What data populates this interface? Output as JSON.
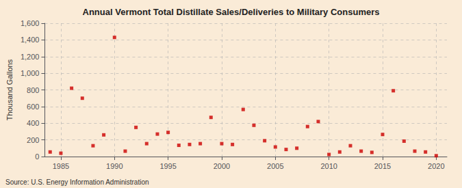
{
  "chart_data": {
    "type": "scatter",
    "title": "Annual Vermont Total Distillate Sales/Deliveries to Military Consumers",
    "ylabel": "Thousand Gallons",
    "annotation": "Source: U.S. Energy Information Administration",
    "x": [
      1984,
      1985,
      1986,
      1987,
      1988,
      1989,
      1990,
      1991,
      1992,
      1993,
      1994,
      1995,
      1996,
      1997,
      1998,
      1999,
      2000,
      2001,
      2002,
      2003,
      2004,
      2005,
      2006,
      2007,
      2008,
      2009,
      2010,
      2011,
      2012,
      2013,
      2014,
      2015,
      2016,
      2017,
      2018,
      2019,
      2020
    ],
    "values": [
      55,
      40,
      820,
      700,
      130,
      260,
      1430,
      65,
      350,
      155,
      270,
      290,
      135,
      145,
      155,
      470,
      155,
      145,
      565,
      375,
      190,
      115,
      85,
      100,
      360,
      420,
      25,
      55,
      130,
      65,
      50,
      265,
      790,
      185,
      65,
      55,
      10
    ],
    "color": "#cc0000",
    "marker": "square",
    "xlim": [
      1983.5,
      2021
    ],
    "xticks": [
      1985,
      1990,
      1995,
      2000,
      2005,
      2010,
      2015,
      2020
    ],
    "ylim": [
      0,
      1600
    ],
    "yticks": [
      0,
      200,
      400,
      600,
      800,
      {
        "value": 1000,
        "label": "1,000"
      },
      {
        "value": 1200,
        "label": "1,200"
      },
      {
        "value": 1400,
        "label": "1,400"
      },
      {
        "value": 1600,
        "label": "1,600"
      }
    ],
    "grid": true
  }
}
